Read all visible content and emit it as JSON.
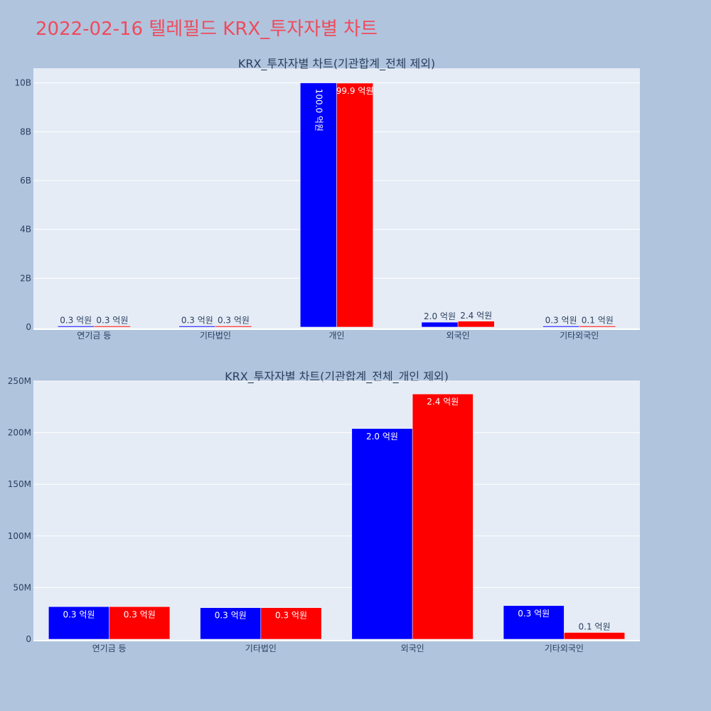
{
  "page": {
    "title": "2022-02-16 텔레필드 KRX_투자자별 차트"
  },
  "colors": {
    "buy": "#0000ff",
    "sell": "#ff0000",
    "plot_bg": "#e5ecf6",
    "page_bg": "#b0c4de",
    "title": "#ef4b5c"
  },
  "chart_data": [
    {
      "type": "bar",
      "title": "KRX_투자자별 차트(기관합계_전체 제외)",
      "categories": [
        "연기금 등",
        "기타법인",
        "개인",
        "외국인",
        "기타외국인"
      ],
      "series": [
        {
          "values": [
            30000000,
            30000000,
            10000000000,
            200000000,
            30000000
          ],
          "labels": [
            "0.3 억원",
            "0.3 억원",
            "100.0 억원",
            "2.0 억원",
            "0.3 억원"
          ]
        },
        {
          "values": [
            30000000,
            30000000,
            9990000000,
            240000000,
            10000000
          ],
          "labels": [
            "0.3 억원",
            "0.3 억원",
            "99.9 억원",
            "2.4 억원",
            "0.1 억원"
          ]
        }
      ],
      "ylim": [
        0,
        10600000000
      ],
      "yticks": [
        0,
        2000000000,
        4000000000,
        6000000000,
        8000000000,
        10000000000
      ],
      "ytick_labels": [
        "0",
        "2B",
        "4B",
        "6B",
        "8B",
        "10B"
      ],
      "grid": true
    },
    {
      "type": "bar",
      "title": "KRX_투자자별 차트(기관합계_전체_개인 제외)",
      "categories": [
        "연기금 등",
        "기타법인",
        "외국인",
        "기타외국인"
      ],
      "series": [
        {
          "values": [
            31500000,
            30500000,
            204000000,
            32500000
          ],
          "labels": [
            "0.3 억원",
            "0.3 억원",
            "2.0 억원",
            "0.3 억원"
          ]
        },
        {
          "values": [
            31500000,
            30500000,
            237500000,
            6500000
          ],
          "labels": [
            "0.3 억원",
            "0.3 억원",
            "2.4 억원",
            "0.1 억원"
          ]
        }
      ],
      "ylim": [
        0,
        250000000
      ],
      "yticks": [
        0,
        50000000,
        100000000,
        150000000,
        200000000,
        250000000
      ],
      "ytick_labels": [
        "0",
        "50M",
        "100M",
        "150M",
        "200M",
        "250M"
      ],
      "grid": true
    }
  ]
}
